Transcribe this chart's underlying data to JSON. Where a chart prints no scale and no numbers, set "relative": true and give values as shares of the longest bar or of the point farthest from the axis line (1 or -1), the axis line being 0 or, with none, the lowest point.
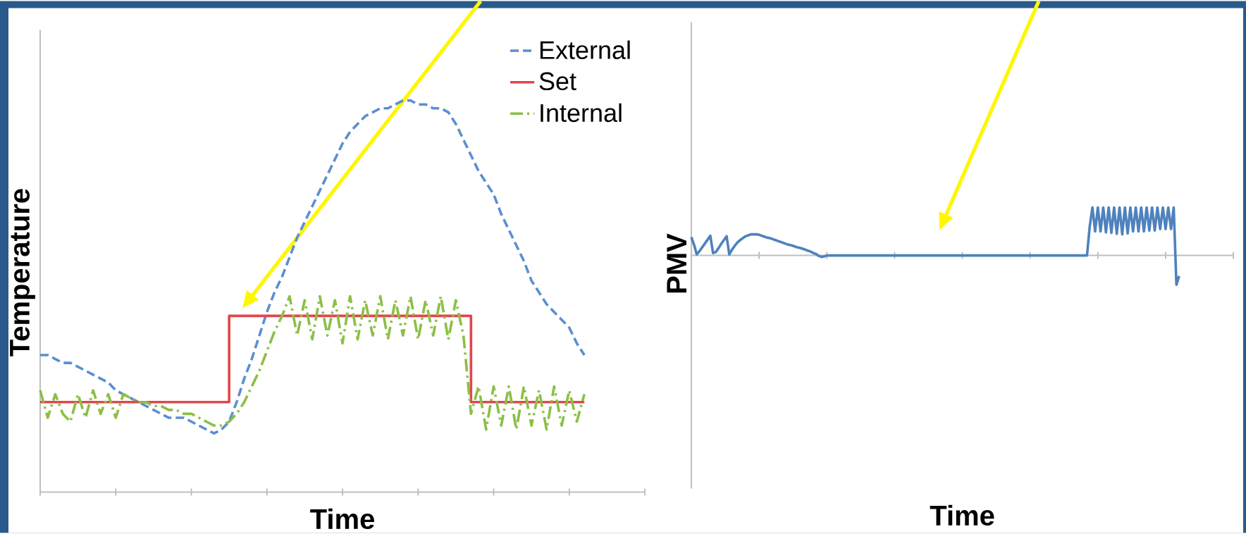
{
  "chart_data": [
    {
      "type": "line",
      "xlabel": "Time",
      "ylabel": "Temperature",
      "relative": true,
      "legend": "top right",
      "marker": "none",
      "categories": [
        null,
        null,
        null,
        null,
        null,
        null,
        null,
        null,
        null,
        null,
        null,
        null,
        null,
        null,
        null,
        null,
        null,
        null,
        null,
        null,
        null,
        null,
        null,
        null,
        null,
        null,
        null,
        null,
        null,
        null,
        null,
        null,
        null,
        null,
        null,
        null,
        null,
        null,
        null,
        null,
        null,
        null,
        null,
        null,
        null,
        null,
        null,
        null,
        null,
        null,
        null,
        null,
        null,
        null,
        null,
        null,
        null,
        null,
        null,
        null,
        null,
        null,
        null,
        null,
        null,
        null,
        null,
        null,
        null,
        null,
        null,
        null,
        null,
        null,
        null,
        null,
        null,
        null,
        null,
        null,
        null
      ],
      "series": [
        {
          "name": "External",
          "color": "#5b8fd0",
          "line_style": "dashed",
          "values": [
            0.35,
            0.35,
            0.34,
            0.33,
            0.33,
            0.32,
            0.31,
            0.3,
            0.29,
            0.28,
            0.26,
            0.25,
            0.24,
            0.23,
            0.22,
            0.21,
            0.2,
            0.19,
            0.19,
            0.19,
            0.18,
            0.17,
            0.16,
            0.15,
            0.16,
            0.18,
            0.23,
            0.29,
            0.34,
            0.4,
            0.46,
            0.51,
            0.55,
            0.6,
            0.65,
            0.69,
            0.73,
            0.77,
            0.81,
            0.85,
            0.89,
            0.92,
            0.94,
            0.96,
            0.97,
            0.98,
            0.98,
            0.99,
            1,
            1,
            0.99,
            0.99,
            0.98,
            0.98,
            0.97,
            0.94,
            0.9,
            0.86,
            0.82,
            0.79,
            0.76,
            0.71,
            0.67,
            0.63,
            0.59,
            0.54,
            0.51,
            0.48,
            0.46,
            0.44,
            0.42,
            0.38,
            0.35,
            null,
            null,
            null,
            null,
            null,
            null,
            null,
            null
          ]
        },
        {
          "name": "Set",
          "type": "step",
          "color": "#e0474c",
          "line_style": "solid",
          "values": [
            0.23,
            0.23,
            0.23,
            0.23,
            0.23,
            0.23,
            0.23,
            0.23,
            0.23,
            0.23,
            0.23,
            0.23,
            0.23,
            0.23,
            0.23,
            0.23,
            0.23,
            0.23,
            0.23,
            0.23,
            0.23,
            0.23,
            0.23,
            0.23,
            0.23,
            0.45,
            0.45,
            0.45,
            0.45,
            0.45,
            0.45,
            0.45,
            0.45,
            0.45,
            0.45,
            0.45,
            0.45,
            0.45,
            0.45,
            0.45,
            0.45,
            0.45,
            0.45,
            0.45,
            0.45,
            0.45,
            0.45,
            0.45,
            0.45,
            0.45,
            0.45,
            0.45,
            0.45,
            0.45,
            0.45,
            0.45,
            0.45,
            0.23,
            0.23,
            0.23,
            0.23,
            0.23,
            0.23,
            0.23,
            0.23,
            0.23,
            0.23,
            0.23,
            0.23,
            0.23,
            0.23,
            0.23,
            0.23,
            null,
            null,
            null,
            null,
            null,
            null,
            null,
            null
          ]
        },
        {
          "name": "Internal",
          "color": "#8cbf45",
          "line_style": "dashdot",
          "values": [
            0.26,
            0.19,
            0.25,
            0.2,
            0.18,
            0.25,
            0.19,
            0.26,
            0.2,
            0.25,
            0.19,
            0.25,
            0.24,
            0.23,
            0.23,
            0.22,
            0.22,
            0.21,
            0.21,
            0.2,
            0.2,
            0.19,
            0.18,
            0.17,
            0.17,
            0.18,
            0.2,
            0.23,
            0.27,
            0.31,
            0.36,
            0.41,
            0.45,
            0.5,
            0.4,
            0.49,
            0.39,
            0.5,
            0.4,
            0.49,
            0.38,
            0.5,
            0.39,
            0.49,
            0.4,
            0.5,
            0.39,
            0.49,
            0.4,
            0.5,
            0.39,
            0.49,
            0.4,
            0.5,
            0.39,
            0.49,
            0.4,
            0.2,
            0.27,
            0.16,
            0.27,
            0.17,
            0.27,
            0.16,
            0.27,
            0.17,
            0.26,
            0.16,
            0.27,
            0.17,
            0.26,
            0.18,
            0.25,
            null,
            null,
            null,
            null,
            null,
            null,
            null,
            null
          ]
        }
      ]
    },
    {
      "type": "line",
      "xlabel": "Time",
      "ylabel": "PMV",
      "relative": true,
      "marker": "none",
      "line_style": "solid",
      "categories": [
        null,
        null,
        null,
        null,
        null,
        null,
        null,
        null,
        null,
        null,
        null,
        null,
        null,
        null,
        null,
        null,
        null,
        null,
        null,
        null,
        null,
        null,
        null,
        null,
        null,
        null,
        null,
        null,
        null,
        null,
        null,
        null,
        null,
        null,
        null,
        null,
        null,
        null,
        null,
        null,
        null,
        null,
        null,
        null,
        null,
        null,
        null,
        null,
        null,
        null,
        null,
        null,
        null,
        null,
        null,
        null,
        null,
        null,
        null,
        null,
        null,
        null,
        null,
        null,
        null,
        null,
        null,
        null,
        null,
        null,
        null,
        null,
        null,
        null,
        null,
        null,
        null,
        null,
        null,
        null,
        null,
        null,
        null,
        null,
        null,
        null,
        null,
        null,
        null,
        null,
        null,
        null,
        null,
        null,
        null,
        null,
        null,
        null,
        null,
        null,
        null,
        null,
        null,
        null,
        null,
        null,
        null,
        null,
        null,
        null,
        null,
        null,
        null,
        null,
        null,
        null,
        null,
        null,
        null,
        null,
        null,
        null,
        null,
        null,
        null,
        null,
        null,
        null,
        null,
        null,
        null,
        null,
        null,
        null,
        null,
        null,
        null,
        null,
        null,
        null,
        null,
        null,
        null,
        null,
        null,
        null,
        null,
        null,
        null,
        null,
        null,
        null,
        null,
        null,
        null,
        null,
        null,
        null,
        null,
        null,
        null,
        null,
        null,
        null,
        null,
        null,
        null,
        null,
        null,
        null,
        null,
        null,
        null,
        null,
        null,
        null,
        null,
        null,
        null,
        null,
        null,
        null,
        null,
        null,
        null,
        null,
        null,
        null,
        null,
        null,
        null,
        null,
        null,
        null,
        null,
        null,
        null,
        null,
        null,
        null,
        null
      ],
      "series": [
        {
          "color": "#4f81bd",
          "values": [
            0.38,
            0.22,
            0.02,
            0.09,
            0.17,
            0.25,
            0.33,
            0.41,
            0.05,
            0.07,
            0.15,
            0.24,
            0.32,
            0.4,
            0.02,
            0.12,
            0.2,
            0.27,
            0.32,
            0.36,
            0.4,
            0.42,
            0.44,
            0.44,
            0.44,
            0.43,
            0.41,
            0.39,
            0.37,
            0.36,
            0.34,
            0.32,
            0.3,
            0.28,
            0.26,
            0.24,
            0.22,
            0.21,
            0.19,
            0.17,
            0.16,
            0.14,
            0.12,
            0.1,
            0.08,
            0.05,
            0.03,
            -0.01,
            -0.03,
            -0.02,
            0,
            0,
            0,
            0,
            0,
            0,
            0,
            0,
            0,
            0,
            0,
            0,
            0,
            0,
            0,
            0,
            0,
            0,
            0,
            0,
            0,
            0,
            0,
            0,
            0,
            0,
            0,
            0,
            0,
            0,
            0,
            0,
            0,
            0,
            0,
            0,
            0,
            0,
            0,
            0,
            0,
            0,
            0,
            0,
            0,
            0,
            0,
            0,
            0,
            0,
            0,
            0,
            0,
            0,
            0,
            0,
            0,
            0,
            0,
            0,
            0,
            0,
            0,
            0,
            0,
            0,
            0,
            0,
            0,
            0,
            0,
            0,
            0,
            0,
            0,
            0,
            0,
            0,
            0,
            0,
            0,
            0,
            0,
            0,
            0,
            0,
            0,
            0,
            0,
            0,
            0,
            0,
            0,
            0,
            0,
            0,
            0,
            0.6,
            1,
            0.5,
            1,
            0.5,
            1,
            0.48,
            1,
            0.47,
            1,
            0.45,
            1,
            0.44,
            1,
            0.46,
            1,
            0.5,
            1,
            0.5,
            1,
            0.5,
            1,
            0.52,
            1,
            0.52,
            1,
            0.55,
            1,
            0.55,
            1,
            0.55,
            1,
            -0.61,
            -0.43,
            null,
            null,
            null,
            null,
            null,
            null,
            null,
            null,
            null,
            null,
            null,
            null,
            null,
            null,
            null,
            null,
            null,
            null,
            null,
            null
          ]
        }
      ]
    }
  ]
}
